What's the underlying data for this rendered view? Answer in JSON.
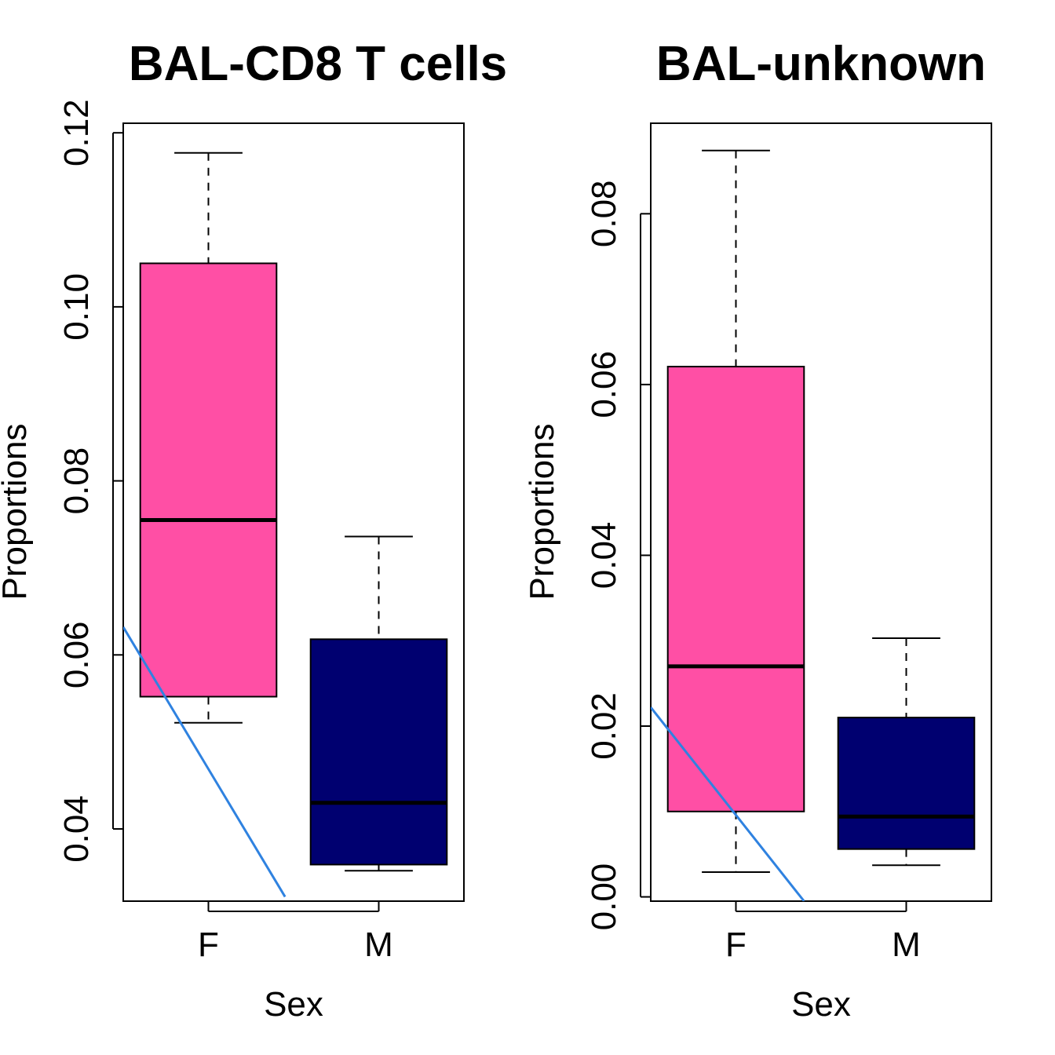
{
  "chart_data": [
    {
      "type": "boxplot",
      "title": "BAL-CD8 T cells",
      "xlabel": "Sex",
      "ylabel": "Proportions",
      "categories": [
        "F",
        "M"
      ],
      "ylim": [
        0.0317,
        0.1211
      ],
      "yticks": [
        "0.04",
        "0.06",
        "0.08",
        "0.10",
        "0.12"
      ],
      "boxes": [
        {
          "name": "F",
          "whisker_low": 0.0522,
          "q1": 0.0552,
          "median": 0.0755,
          "q3": 0.105,
          "whisker_high": 0.1177,
          "color": "#ff4fa5"
        },
        {
          "name": "M",
          "whisker_low": 0.0352,
          "q1": 0.0359,
          "median": 0.043,
          "q3": 0.0618,
          "whisker_high": 0.0736,
          "color": "#000070"
        }
      ],
      "line": {
        "x": [
          0.5,
          1.45
        ],
        "y": [
          0.0632,
          0.0322
        ],
        "color": "#2f82e0"
      }
    },
    {
      "type": "boxplot",
      "title": "BAL-unknown",
      "xlabel": "Sex",
      "ylabel": "Proportions",
      "categories": [
        "F",
        "M"
      ],
      "ylim": [
        -0.0005,
        0.0906
      ],
      "yticks": [
        "0.00",
        "0.02",
        "0.04",
        "0.06",
        "0.08"
      ],
      "boxes": [
        {
          "name": "F",
          "whisker_low": 0.0029,
          "q1": 0.01,
          "median": 0.027,
          "q3": 0.0621,
          "whisker_high": 0.0874,
          "color": "#ff4fa5"
        },
        {
          "name": "M",
          "whisker_low": 0.0037,
          "q1": 0.0056,
          "median": 0.0094,
          "q3": 0.021,
          "whisker_high": 0.0303,
          "color": "#000070"
        }
      ],
      "line": {
        "x": [
          0.5,
          1.4
        ],
        "y": [
          0.0222,
          -0.0005
        ],
        "color": "#2f82e0"
      }
    }
  ]
}
